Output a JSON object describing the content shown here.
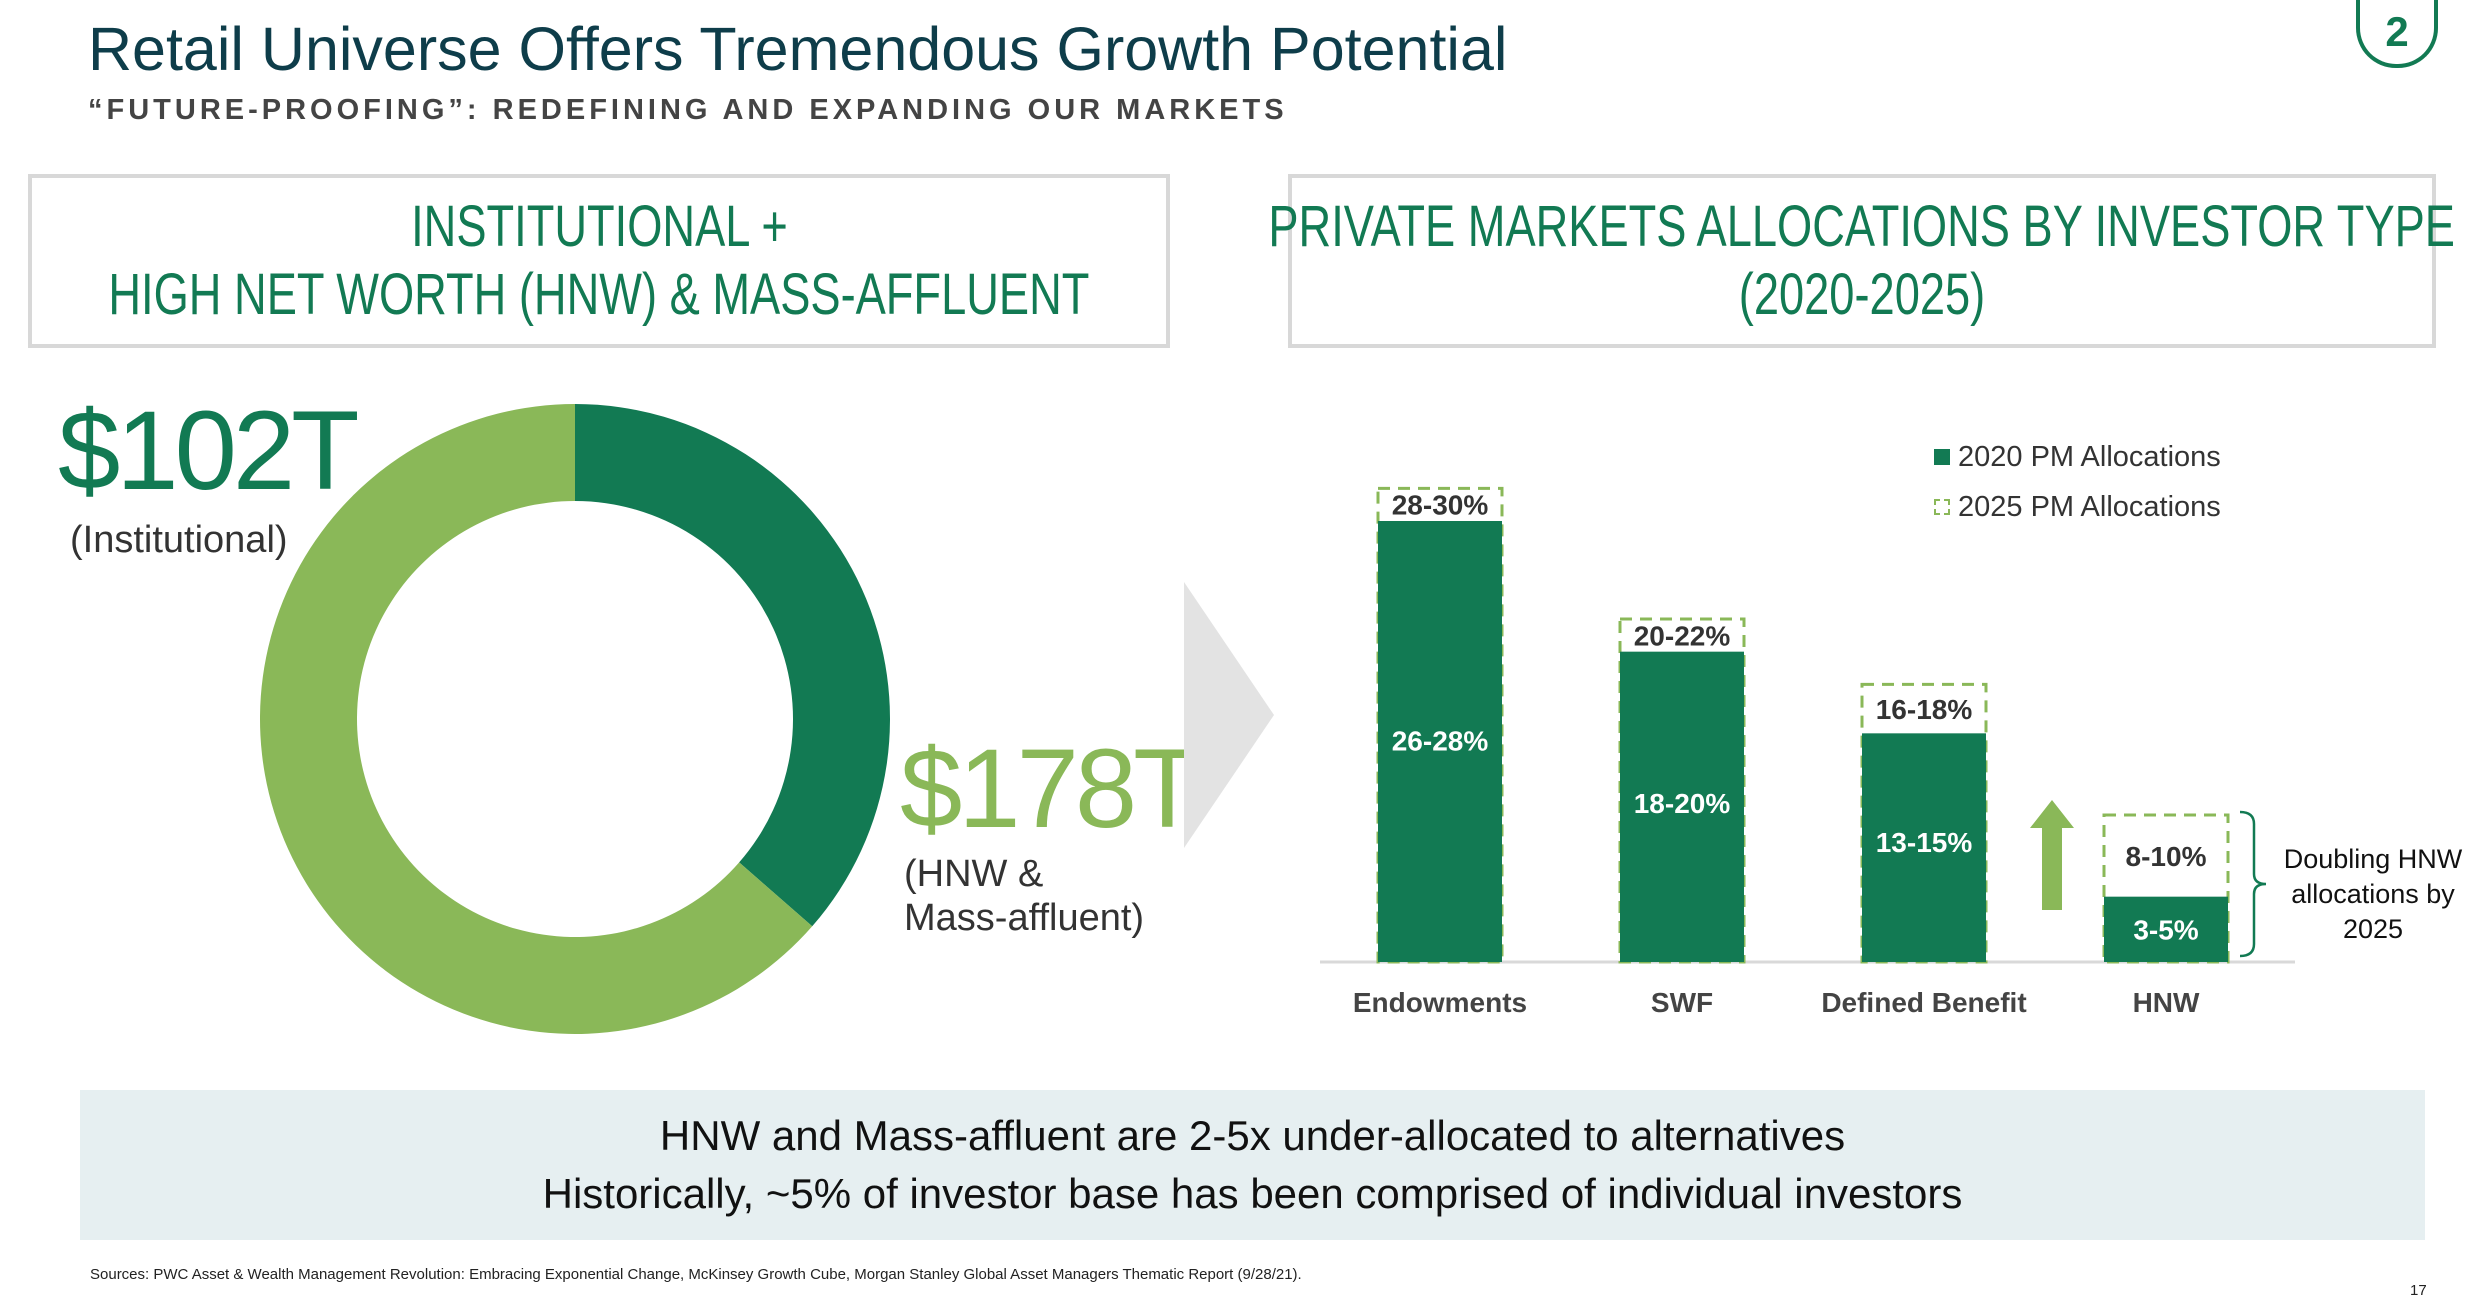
{
  "header": {
    "title": "Retail Universe Offers Tremendous Growth Potential",
    "subtitle": "“FUTURE-PROOFING”: REDEFINING AND EXPANDING OUR MARKETS",
    "badge": "2"
  },
  "left_panel": {
    "heading_line1": "INSTITUTIONAL +",
    "heading_line2": "HIGH NET WORTH (HNW) & MASS-AFFLUENT",
    "institutional_value": "$102T",
    "institutional_label": "(Institutional)",
    "hnw_value": "$178T",
    "hnw_label_line1": "(HNW &",
    "hnw_label_line2": "Mass-affluent)"
  },
  "right_panel": {
    "heading_line1": "PRIVATE MARKETS ALLOCATIONS BY INVESTOR TYPE",
    "heading_line2": "(2020-2025)",
    "annotation_line1": "Doubling HNW",
    "annotation_line2": "allocations by",
    "annotation_line3": "2025"
  },
  "colors": {
    "dark_green": "#127a53",
    "light_green": "#8ab858",
    "title_blue": "#0e3d4a",
    "callout_bg": "#e6eff1"
  },
  "chart_data": [
    {
      "type": "pie",
      "categories": [
        "Institutional",
        "HNW & Mass-affluent"
      ],
      "values": [
        102,
        178
      ],
      "colors": [
        "#127a53",
        "#8ab858"
      ]
    },
    {
      "type": "bar",
      "categories": [
        "Endowments",
        "SWF",
        "Defined Benefit",
        "HNW"
      ],
      "series": [
        {
          "name": "2020 PM Allocations",
          "values": [
            27,
            19,
            14,
            4
          ],
          "labels": [
            "26-28%",
            "18-20%",
            "13-15%",
            "3-5%"
          ]
        },
        {
          "name": "2025 PM Allocations",
          "values": [
            29,
            21,
            17,
            9
          ],
          "labels": [
            "28-30%",
            "20-22%",
            "16-18%",
            "8-10%"
          ]
        }
      ],
      "ylim": [
        0,
        30
      ],
      "legend": "top-right",
      "grid": false
    }
  ],
  "callout": {
    "line1": "HNW and Mass-affluent are 2-5x under-allocated to alternatives",
    "line2": "Historically, ~5% of investor base has been comprised of individual investors"
  },
  "footer": {
    "sources": "Sources: PWC Asset & Wealth Management Revolution: Embracing Exponential Change, McKinsey Growth Cube, Morgan Stanley Global Asset Managers Thematic Report (9/28/21).",
    "page_number": "17"
  }
}
